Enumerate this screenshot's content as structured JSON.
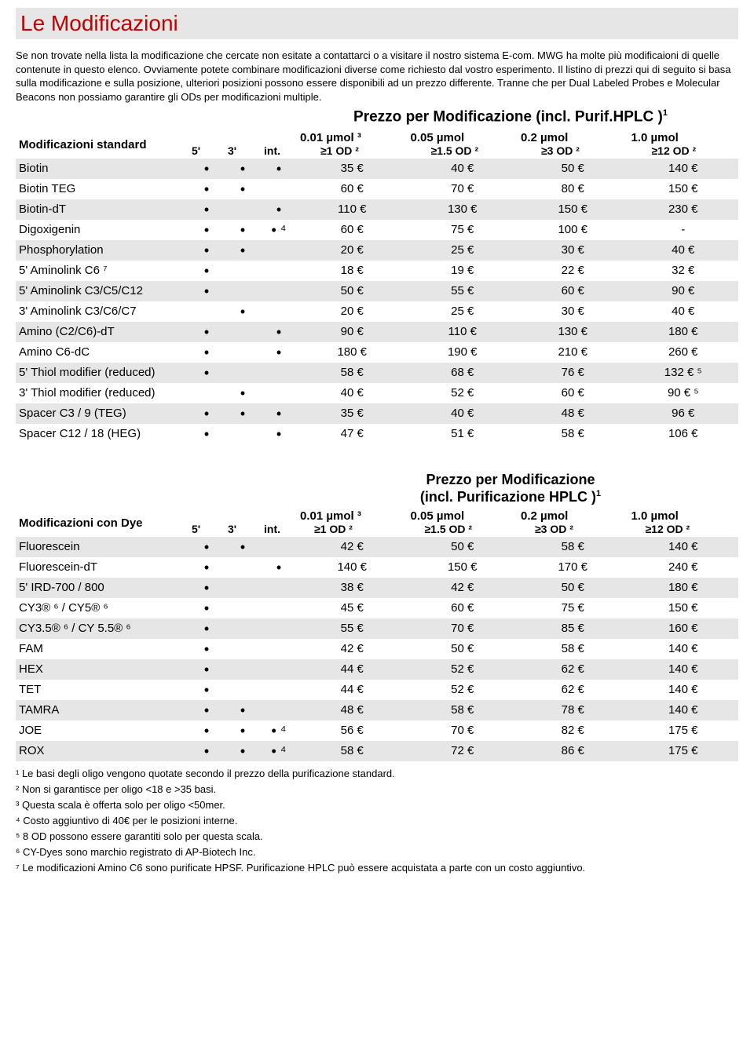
{
  "title": "Le Modificazioni",
  "intro": "Se non trovate nella lista la modificazione che cercate non esitate a contattarci o a visitare il nostro sistema E-com. MWG ha molte più modificaioni di quelle contenute in questo elenco. Ovviamente potete combinare modificazioni diverse come richiesto dal vostro esperimento. Il listino di prezzi qui di seguito si basa sulla modificazione e sulla posizione, ulteriori posizioni possono essere disponibili ad un prezzo differente. Tranne che per Dual Labeled Probes e Molecular Beacons non possiamo garantire gli ODs per modificazioni multiple.",
  "priceHeader1": "Prezzo per Modificazione (incl. Purif.HPLC )",
  "priceHeader2a": "Prezzo per Modificazione",
  "priceHeader2b": "(incl. Purificazione HPLC )",
  "sectionLabel1": "Modificazioni standard",
  "sectionLabel2": "Modificazioni con Dye",
  "posHeaders": {
    "p5": "5'",
    "p3": "3'",
    "pint": "int."
  },
  "scaleTop": {
    "c1": "0.01 µmol ³",
    "c2": "0.05 µmol",
    "c3": "0.2 µmol",
    "c4": "1.0 µmol"
  },
  "scaleBot": {
    "c1": "≥1 OD ²",
    "c2": "≥1.5 OD ²",
    "c3": "≥3 OD ²",
    "c4": "≥12 OD ²"
  },
  "t1": [
    {
      "name": "Biotin",
      "p5": "•",
      "p3": "•",
      "pi": "•",
      "v1": "35 €",
      "v2": "40 €",
      "v3": "50 €",
      "v4": "140 €",
      "gray": true
    },
    {
      "name": "Biotin TEG",
      "p5": "•",
      "p3": "•",
      "pi": "",
      "v1": "60 €",
      "v2": "70 €",
      "v3": "80 €",
      "v4": "150 €"
    },
    {
      "name": "Biotin-dT",
      "p5": "•",
      "p3": "",
      "pi": "•",
      "v1": "110 €",
      "v2": "130 €",
      "v3": "150 €",
      "v4": "230 €",
      "gray": true
    },
    {
      "name": "Digoxigenin",
      "p5": "•",
      "p3": "•",
      "pi": "• ⁴",
      "v1": "60 €",
      "v2": "75 €",
      "v3": "100 €",
      "v4": "-"
    },
    {
      "name": "Phosphorylation",
      "p5": "•",
      "p3": "•",
      "pi": "",
      "v1": "20 €",
      "v2": "25 €",
      "v3": "30 €",
      "v4": "40 €",
      "gray": true
    },
    {
      "name": "5' Aminolink C6 ⁷",
      "p5": "•",
      "p3": "",
      "pi": "",
      "v1": "18 €",
      "v2": "19 €",
      "v3": "22 €",
      "v4": "32 €"
    },
    {
      "name": "5' Aminolink C3/C5/C12",
      "p5": "•",
      "p3": "",
      "pi": "",
      "v1": "50 €",
      "v2": "55 €",
      "v3": "60 €",
      "v4": "90 €",
      "gray": true
    },
    {
      "name": "3' Aminolink C3/C6/C7",
      "p5": "",
      "p3": "•",
      "pi": "",
      "v1": "20 €",
      "v2": "25 €",
      "v3": "30 €",
      "v4": "40 €"
    },
    {
      "name": "Amino (C2/C6)-dT",
      "p5": "•",
      "p3": "",
      "pi": "•",
      "v1": "90 €",
      "v2": "110 €",
      "v3": "130 €",
      "v4": "180 €",
      "gray": true
    },
    {
      "name": "Amino C6-dC",
      "p5": "•",
      "p3": "",
      "pi": "•",
      "v1": "180 €",
      "v2": "190 €",
      "v3": "210 €",
      "v4": "260 €"
    },
    {
      "name": "5' Thiol modifier (reduced)",
      "p5": "•",
      "p3": "",
      "pi": "",
      "v1": "58 €",
      "v2": "68 €",
      "v3": "76 €",
      "v4": "132 € ⁵",
      "gray": true
    },
    {
      "name": "3' Thiol modifier (reduced)",
      "p5": "",
      "p3": "•",
      "pi": "",
      "v1": "40 €",
      "v2": "52 €",
      "v3": "60 €",
      "v4": "90 € ⁵"
    },
    {
      "name": "Spacer C3 / 9 (TEG)",
      "p5": "•",
      "p3": "•",
      "pi": "•",
      "v1": "35 €",
      "v2": "40 €",
      "v3": "48 €",
      "v4": "96 €",
      "gray": true
    },
    {
      "name": "Spacer C12 / 18 (HEG)",
      "p5": "•",
      "p3": "",
      "pi": "•",
      "v1": "47 €",
      "v2": "51 €",
      "v3": "58 €",
      "v4": "106 €"
    }
  ],
  "t2": [
    {
      "name": "Fluorescein",
      "p5": "•",
      "p3": "•",
      "pi": "",
      "v1": "42 €",
      "v2": "50 €",
      "v3": "58 €",
      "v4": "140 €",
      "gray": true
    },
    {
      "name": "Fluorescein-dT",
      "p5": "•",
      "p3": "",
      "pi": "•",
      "v1": "140 €",
      "v2": "150 €",
      "v3": "170 €",
      "v4": "240 €"
    },
    {
      "name": "5' IRD-700 / 800",
      "p5": "•",
      "p3": "",
      "pi": "",
      "v1": "38 €",
      "v2": "42 €",
      "v3": "50 €",
      "v4": "180 €",
      "gray": true
    },
    {
      "name": "CY3® ⁶ / CY5® ⁶",
      "p5": "•",
      "p3": "",
      "pi": "",
      "v1": "45 €",
      "v2": "60 €",
      "v3": "75 €",
      "v4": "150 €"
    },
    {
      "name": "CY3.5® ⁶ / CY 5.5® ⁶",
      "p5": "•",
      "p3": "",
      "pi": "",
      "v1": "55 €",
      "v2": "70 €",
      "v3": "85 €",
      "v4": "160 €",
      "gray": true
    },
    {
      "name": "FAM",
      "p5": "•",
      "p3": "",
      "pi": "",
      "v1": "42 €",
      "v2": "50 €",
      "v3": "58 €",
      "v4": "140 €"
    },
    {
      "name": "HEX",
      "p5": "•",
      "p3": "",
      "pi": "",
      "v1": "44 €",
      "v2": "52 €",
      "v3": "62 €",
      "v4": "140 €",
      "gray": true
    },
    {
      "name": "TET",
      "p5": "•",
      "p3": "",
      "pi": "",
      "v1": "44 €",
      "v2": "52 €",
      "v3": "62 €",
      "v4": "140 €"
    },
    {
      "name": "TAMRA",
      "p5": "•",
      "p3": "•",
      "pi": "",
      "v1": "48 €",
      "v2": "58 €",
      "v3": "78 €",
      "v4": "140 €",
      "gray": true
    },
    {
      "name": "JOE",
      "p5": "•",
      "p3": "•",
      "pi": "• ⁴",
      "v1": "56 €",
      "v2": "70 €",
      "v3": "82 €",
      "v4": "175 €"
    },
    {
      "name": "ROX",
      "p5": "•",
      "p3": "•",
      "pi": "• ⁴",
      "v1": "58 €",
      "v2": "72 €",
      "v3": "86 €",
      "v4": "175 €",
      "gray": true
    }
  ],
  "footnotes": [
    "¹ Le basi degli oligo vengono quotate secondo il prezzo della purificazione standard.",
    "² Non si garantisce per oligo <18 e >35 basi.",
    "³ Questa scala è offerta solo per oligo <50mer.",
    "⁴ Costo aggiuntivo di 40€ per le posizioni interne.",
    "⁵ 8 OD possono essere garantiti solo per questa scala.",
    "⁶ CY-Dyes sono marchio registrato di AP-Biotech Inc.",
    "⁷ Le modificazioni Amino C6 sono purificate HPSF. Purificazione HPLC  può essere acquistata a parte con un costo aggiuntivo."
  ]
}
